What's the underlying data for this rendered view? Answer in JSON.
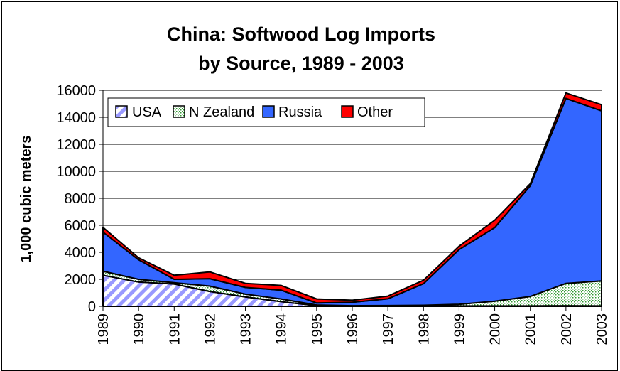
{
  "chart_data": {
    "type": "area",
    "stacked": true,
    "title_lines": [
      "China: Softwood Log Imports",
      "by Source, 1989 - 2003"
    ],
    "ylabel": "1,000 cubic meters",
    "xlabel": "",
    "ylim": [
      0,
      16000
    ],
    "yticks": [
      "0",
      "2000",
      "4000",
      "6000",
      "8000",
      "10000",
      "12000",
      "14000",
      "16000"
    ],
    "categories": [
      "1989",
      "1990",
      "1991",
      "1992",
      "1993",
      "1994",
      "1995",
      "1996",
      "1997",
      "1998",
      "1999",
      "2000",
      "2001",
      "2002",
      "2003"
    ],
    "series": [
      {
        "name": "USA",
        "color": "#9999ff",
        "pattern": "diagonal-stripes",
        "values": [
          2300,
          1800,
          1650,
          1100,
          700,
          350,
          50,
          30,
          30,
          30,
          30,
          30,
          30,
          50,
          30
        ]
      },
      {
        "name": "N Zealand",
        "color": "#339933",
        "pattern": "dots",
        "values": [
          300,
          200,
          100,
          400,
          200,
          200,
          50,
          20,
          30,
          50,
          120,
          350,
          700,
          1650,
          1850
        ]
      },
      {
        "name": "Russia",
        "color": "#3366ff",
        "pattern": "solid",
        "values": [
          2900,
          1450,
          250,
          550,
          500,
          650,
          150,
          250,
          500,
          1600,
          4050,
          5450,
          8200,
          13700,
          12600
        ]
      },
      {
        "name": "Other",
        "color": "#ff0000",
        "pattern": "solid",
        "values": [
          350,
          150,
          300,
          500,
          300,
          350,
          300,
          150,
          200,
          250,
          250,
          550,
          150,
          400,
          450
        ]
      }
    ],
    "legend_position": "top-left",
    "grid": {
      "horizontal": true,
      "vertical": false
    }
  }
}
